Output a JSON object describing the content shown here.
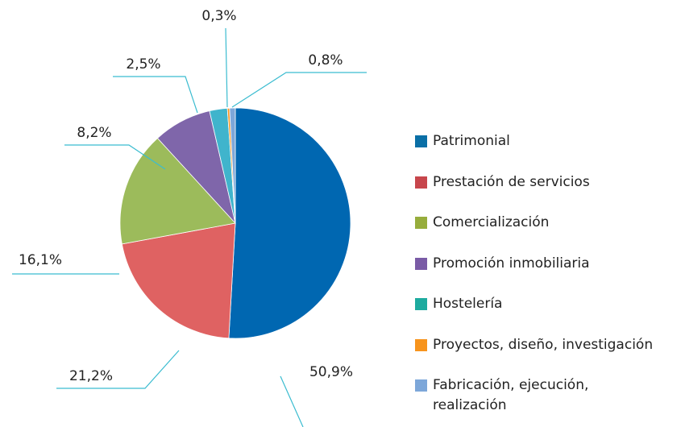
{
  "chart_data": {
    "type": "pie",
    "categories": [
      "Patrimonial",
      "Prestación de servicios",
      "Comercialización",
      "Promoción inmobiliaria",
      "Hostelería",
      "Proyectos, diseño, investigación",
      "Fabricación, ejecución, realización"
    ],
    "values": [
      50.9,
      21.2,
      16.1,
      8.2,
      2.5,
      0.3,
      0.8
    ],
    "value_labels": [
      "50,9%",
      "21,2%",
      "16,1%",
      "8,2%",
      "2,5%",
      "0,3%",
      "0,8%"
    ],
    "colors": [
      "#0067b1",
      "#df6262",
      "#9cbb5b",
      "#7f66aa",
      "#40b4cc",
      "#f7941d",
      "#7da7d9"
    ],
    "legend_colors": [
      "#0a6fa6",
      "#c7464c",
      "#97ad3c",
      "#7a5ba6",
      "#1eab9f",
      "#f7941d",
      "#7da7d9"
    ]
  }
}
